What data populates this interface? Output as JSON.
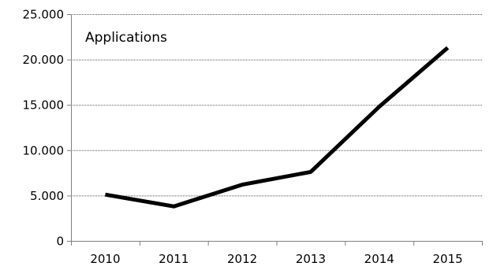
{
  "chart_data": {
    "type": "line",
    "title": "",
    "xlabel": "",
    "ylabel": "",
    "categories": [
      "2010",
      "2011",
      "2012",
      "2013",
      "2014",
      "2015"
    ],
    "series": [
      {
        "name": "Applications",
        "values": [
          5100,
          3800,
          6200,
          7600,
          14800,
          21300
        ],
        "color": "#000000"
      }
    ],
    "ylim": [
      0,
      25000
    ],
    "yticks": [
      0,
      5000,
      10000,
      15000,
      20000,
      25000
    ],
    "ytick_labels": [
      "0",
      "5.000",
      "10.000",
      "15.000",
      "20.000",
      "25.000"
    ],
    "grid": "horizontal dotted",
    "legend": "none"
  }
}
